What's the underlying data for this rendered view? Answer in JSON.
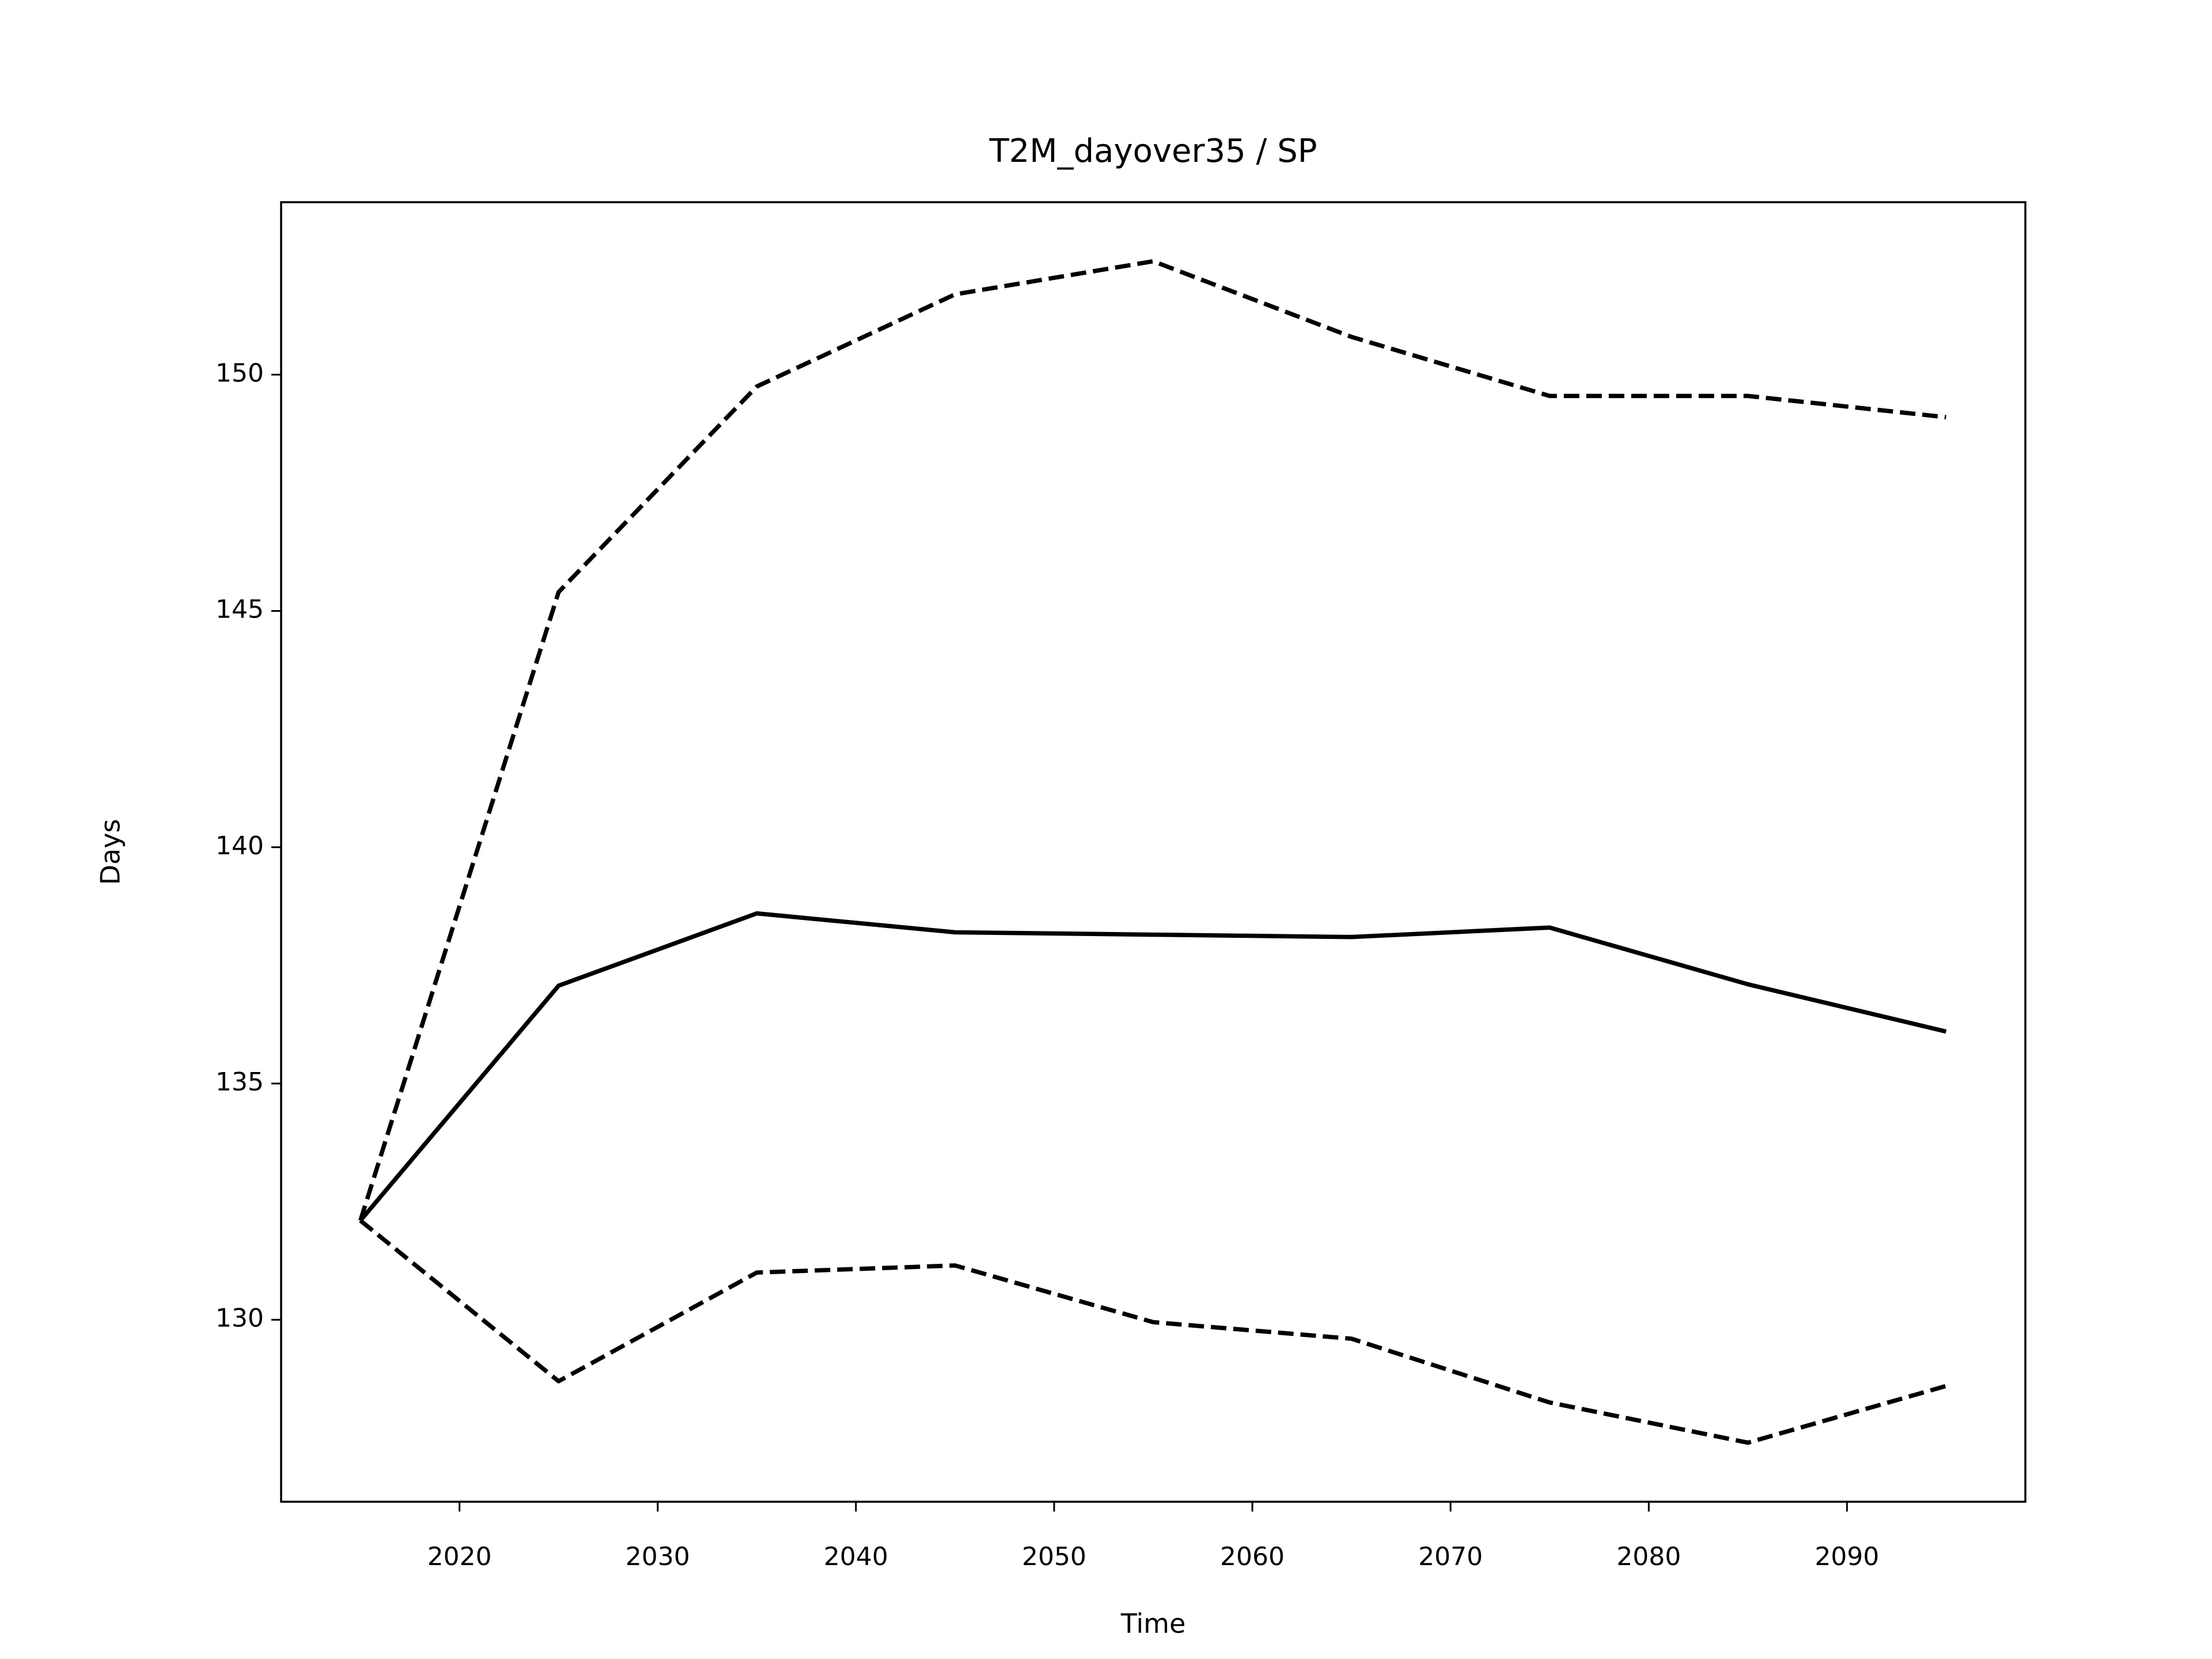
{
  "chart_data": {
    "type": "line",
    "title": "T2M_dayover35 / SP",
    "xlabel": "Time",
    "ylabel": "Days",
    "x": [
      2015,
      2025,
      2035,
      2045,
      2055,
      2065,
      2075,
      2085,
      2095
    ],
    "series": [
      {
        "color": "#000000",
        "linestyle": "solid",
        "values": [
          132.1,
          137.07,
          138.6,
          138.2,
          138.15,
          138.1,
          138.3,
          137.1,
          136.1
        ]
      },
      {
        "color": "#000000",
        "linestyle": "dashed",
        "values": [
          132.1,
          145.4,
          149.75,
          151.7,
          152.4,
          150.8,
          149.55,
          149.55,
          149.1
        ]
      },
      {
        "color": "#000000",
        "linestyle": "dashed",
        "values": [
          132.1,
          128.7,
          131.0,
          131.15,
          129.95,
          129.6,
          128.25,
          127.4,
          128.6
        ]
      }
    ],
    "xlim": [
      2011,
      2099
    ],
    "xticks": [
      2020,
      2030,
      2040,
      2050,
      2060,
      2070,
      2080,
      2090
    ],
    "ylim": [
      126.15,
      153.65
    ],
    "yticks": [
      130,
      135,
      140,
      145,
      150
    ],
    "grid": false
  }
}
